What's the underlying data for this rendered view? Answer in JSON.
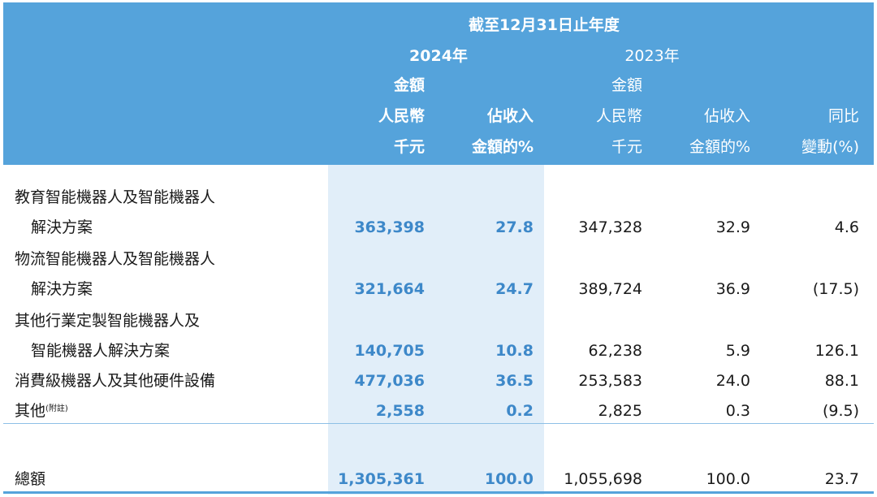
{
  "header": {
    "period": "截至12月31日止年度",
    "year_2024": "2024年",
    "year_2023": "2023年",
    "amount": "金額",
    "currency": "人民幣",
    "unit": "千元",
    "pct_line1": "佔收入",
    "pct_line2": "金額的%",
    "yoy_line1": "同比",
    "yoy_line2": "變動(%)"
  },
  "rows": [
    {
      "label_lines": [
        "教育智能機器人及智能機器人",
        "解決方案"
      ],
      "amt_2024": "363,398",
      "pct_2024": "27.8",
      "amt_2023": "347,328",
      "pct_2023": "32.9",
      "yoy": "4.6"
    },
    {
      "label_lines": [
        "物流智能機器人及智能機器人",
        "解決方案"
      ],
      "amt_2024": "321,664",
      "pct_2024": "24.7",
      "amt_2023": "389,724",
      "pct_2023": "36.9",
      "yoy": "(17.5)"
    },
    {
      "label_lines": [
        "其他行業定製智能機器人及",
        "智能機器人解決方案"
      ],
      "amt_2024": "140,705",
      "pct_2024": "10.8",
      "amt_2023": "62,238",
      "pct_2023": "5.9",
      "yoy": "126.1"
    },
    {
      "label_lines": [
        "消費級機器人及其他硬件設備"
      ],
      "amt_2024": "477,036",
      "pct_2024": "36.5",
      "amt_2023": "253,583",
      "pct_2023": "24.0",
      "yoy": "88.1"
    },
    {
      "label_lines": [
        "其他"
      ],
      "note": "(附註)",
      "amt_2024": "2,558",
      "pct_2024": "0.2",
      "amt_2023": "2,825",
      "pct_2023": "0.3",
      "yoy": "(9.5)"
    }
  ],
  "total": {
    "label": "總額",
    "amt_2024": "1,305,361",
    "pct_2024": "100.0",
    "amt_2023": "1,055,698",
    "pct_2023": "100.0",
    "yoy": "23.7"
  },
  "colors": {
    "header_bg": "#55a3db",
    "highlight_col_bg": "#e1eef9",
    "highlight_text": "#3d88c9"
  }
}
